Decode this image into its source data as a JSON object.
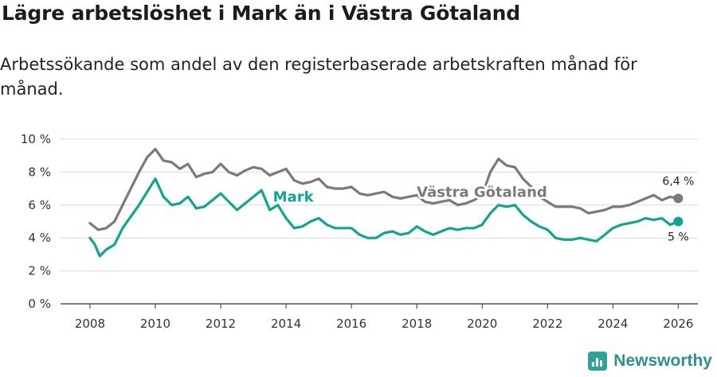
{
  "header": {
    "title": "Lägre arbetslöshet i Mark än i Västra Götaland",
    "subtitle": "Arbetssökande som andel av den registerbaserade arbetskraften månad för månad."
  },
  "brand": {
    "name": "Newsworthy",
    "color": "#2fa39a"
  },
  "chart_data": {
    "type": "line",
    "title": "Lägre arbetslöshet i Mark än i Västra Götaland",
    "subtitle": "Arbetssökande som andel av den registerbaserade arbetskraften månad för månad.",
    "xlabel": "",
    "ylabel": "",
    "xlim": [
      2007.1,
      2026.6
    ],
    "ylim": [
      0,
      10
    ],
    "grid": true,
    "x_ticks": [
      2008,
      2010,
      2012,
      2014,
      2016,
      2018,
      2020,
      2022,
      2024,
      2026
    ],
    "x_tick_labels": [
      "2008",
      "2010",
      "2012",
      "2014",
      "2016",
      "2018",
      "2020",
      "2022",
      "2024",
      "2026"
    ],
    "y_ticks": [
      0,
      2,
      4,
      6,
      8,
      10
    ],
    "y_tick_labels": [
      "0 %",
      "2 %",
      "4 %",
      "6 %",
      "8 %",
      "10 %"
    ],
    "series": [
      {
        "name": "Västra Götaland",
        "color": "#7a7a7a",
        "end_label": "6,4 %",
        "points": [
          [
            2008.0,
            4.9
          ],
          [
            2008.25,
            4.5
          ],
          [
            2008.5,
            4.6
          ],
          [
            2008.75,
            5.0
          ],
          [
            2009.0,
            6.0
          ],
          [
            2009.25,
            7.0
          ],
          [
            2009.5,
            8.0
          ],
          [
            2009.75,
            8.9
          ],
          [
            2010.0,
            9.4
          ],
          [
            2010.25,
            8.7
          ],
          [
            2010.5,
            8.6
          ],
          [
            2010.75,
            8.2
          ],
          [
            2011.0,
            8.5
          ],
          [
            2011.25,
            7.7
          ],
          [
            2011.5,
            7.9
          ],
          [
            2011.75,
            8.0
          ],
          [
            2012.0,
            8.5
          ],
          [
            2012.25,
            8.0
          ],
          [
            2012.5,
            7.8
          ],
          [
            2012.75,
            8.1
          ],
          [
            2013.0,
            8.3
          ],
          [
            2013.25,
            8.2
          ],
          [
            2013.5,
            7.8
          ],
          [
            2013.75,
            8.0
          ],
          [
            2014.0,
            8.2
          ],
          [
            2014.25,
            7.5
          ],
          [
            2014.5,
            7.3
          ],
          [
            2014.75,
            7.4
          ],
          [
            2015.0,
            7.6
          ],
          [
            2015.25,
            7.1
          ],
          [
            2015.5,
            7.0
          ],
          [
            2015.75,
            7.0
          ],
          [
            2016.0,
            7.1
          ],
          [
            2016.25,
            6.7
          ],
          [
            2016.5,
            6.6
          ],
          [
            2016.75,
            6.7
          ],
          [
            2017.0,
            6.8
          ],
          [
            2017.25,
            6.5
          ],
          [
            2017.5,
            6.4
          ],
          [
            2017.75,
            6.5
          ],
          [
            2018.0,
            6.6
          ],
          [
            2018.25,
            6.2
          ],
          [
            2018.5,
            6.1
          ],
          [
            2018.75,
            6.2
          ],
          [
            2019.0,
            6.3
          ],
          [
            2019.25,
            6.0
          ],
          [
            2019.5,
            6.1
          ],
          [
            2019.75,
            6.3
          ],
          [
            2020.0,
            6.6
          ],
          [
            2020.25,
            8.0
          ],
          [
            2020.5,
            8.8
          ],
          [
            2020.75,
            8.4
          ],
          [
            2021.0,
            8.3
          ],
          [
            2021.25,
            7.6
          ],
          [
            2021.5,
            7.1
          ],
          [
            2021.75,
            6.5
          ],
          [
            2022.0,
            6.2
          ],
          [
            2022.25,
            5.9
          ],
          [
            2022.5,
            5.9
          ],
          [
            2022.75,
            5.9
          ],
          [
            2023.0,
            5.8
          ],
          [
            2023.25,
            5.5
          ],
          [
            2023.5,
            5.6
          ],
          [
            2023.75,
            5.7
          ],
          [
            2024.0,
            5.9
          ],
          [
            2024.25,
            5.9
          ],
          [
            2024.5,
            6.0
          ],
          [
            2024.75,
            6.2
          ],
          [
            2025.0,
            6.4
          ],
          [
            2025.25,
            6.6
          ],
          [
            2025.5,
            6.3
          ],
          [
            2025.75,
            6.5
          ],
          [
            2026.0,
            6.4
          ]
        ]
      },
      {
        "name": "Mark",
        "color": "#12a392",
        "end_label": "5 %",
        "points": [
          [
            2008.0,
            4.0
          ],
          [
            2008.15,
            3.6
          ],
          [
            2008.3,
            2.9
          ],
          [
            2008.5,
            3.3
          ],
          [
            2008.75,
            3.6
          ],
          [
            2009.0,
            4.6
          ],
          [
            2009.25,
            5.3
          ],
          [
            2009.5,
            6.0
          ],
          [
            2009.75,
            6.8
          ],
          [
            2010.0,
            7.6
          ],
          [
            2010.25,
            6.5
          ],
          [
            2010.5,
            6.0
          ],
          [
            2010.75,
            6.1
          ],
          [
            2011.0,
            6.5
          ],
          [
            2011.25,
            5.8
          ],
          [
            2011.5,
            5.9
          ],
          [
            2011.75,
            6.3
          ],
          [
            2012.0,
            6.7
          ],
          [
            2012.25,
            6.2
          ],
          [
            2012.5,
            5.7
          ],
          [
            2012.75,
            6.1
          ],
          [
            2013.0,
            6.5
          ],
          [
            2013.25,
            6.9
          ],
          [
            2013.5,
            5.7
          ],
          [
            2013.75,
            6.0
          ],
          [
            2014.0,
            5.2
          ],
          [
            2014.25,
            4.6
          ],
          [
            2014.5,
            4.7
          ],
          [
            2014.75,
            5.0
          ],
          [
            2015.0,
            5.2
          ],
          [
            2015.25,
            4.8
          ],
          [
            2015.5,
            4.6
          ],
          [
            2015.75,
            4.6
          ],
          [
            2016.0,
            4.6
          ],
          [
            2016.25,
            4.2
          ],
          [
            2016.5,
            4.0
          ],
          [
            2016.75,
            4.0
          ],
          [
            2017.0,
            4.3
          ],
          [
            2017.25,
            4.4
          ],
          [
            2017.5,
            4.2
          ],
          [
            2017.75,
            4.3
          ],
          [
            2018.0,
            4.7
          ],
          [
            2018.25,
            4.4
          ],
          [
            2018.5,
            4.2
          ],
          [
            2018.75,
            4.4
          ],
          [
            2019.0,
            4.6
          ],
          [
            2019.25,
            4.5
          ],
          [
            2019.5,
            4.6
          ],
          [
            2019.75,
            4.6
          ],
          [
            2020.0,
            4.8
          ],
          [
            2020.25,
            5.5
          ],
          [
            2020.5,
            6.0
          ],
          [
            2020.75,
            5.9
          ],
          [
            2021.0,
            6.0
          ],
          [
            2021.25,
            5.4
          ],
          [
            2021.5,
            5.0
          ],
          [
            2021.75,
            4.7
          ],
          [
            2022.0,
            4.5
          ],
          [
            2022.25,
            4.0
          ],
          [
            2022.5,
            3.9
          ],
          [
            2022.75,
            3.9
          ],
          [
            2023.0,
            4.0
          ],
          [
            2023.25,
            3.9
          ],
          [
            2023.5,
            3.8
          ],
          [
            2023.75,
            4.2
          ],
          [
            2024.0,
            4.6
          ],
          [
            2024.25,
            4.8
          ],
          [
            2024.5,
            4.9
          ],
          [
            2024.75,
            5.0
          ],
          [
            2025.0,
            5.2
          ],
          [
            2025.25,
            5.1
          ],
          [
            2025.5,
            5.2
          ],
          [
            2025.75,
            4.8
          ],
          [
            2026.0,
            5.0
          ]
        ]
      }
    ],
    "annotations": [
      {
        "text": "Mark",
        "x": 2013.6,
        "y": 6.2,
        "series": "Mark"
      },
      {
        "text": "Västra Götaland",
        "x": 2018.0,
        "y": 6.5,
        "series": "Västra Götaland"
      }
    ]
  }
}
